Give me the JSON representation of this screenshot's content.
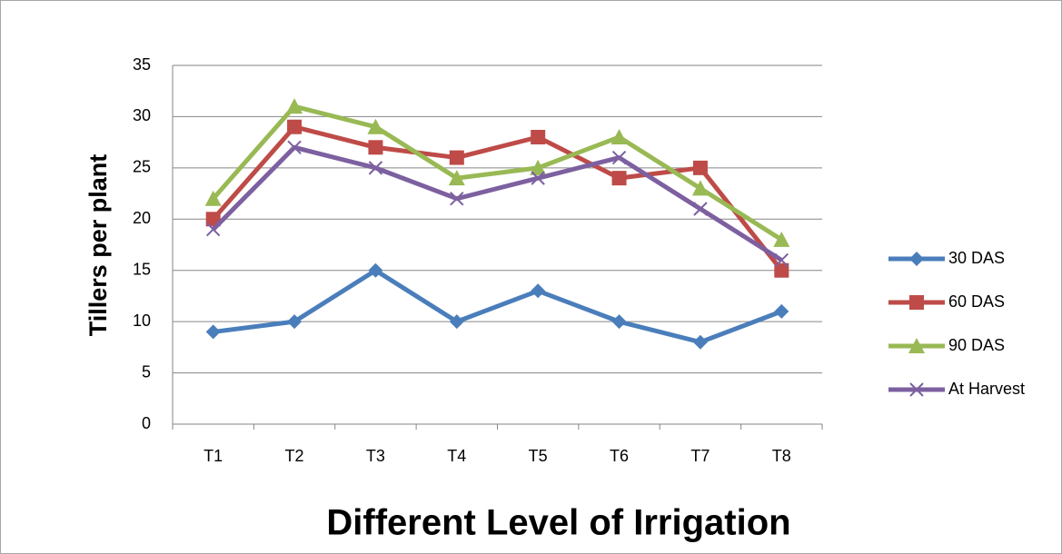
{
  "chart_data": {
    "type": "line",
    "y_label": "Tillers per plant",
    "x_label": "Different Level of Irrigation",
    "categories": [
      "T1",
      "T2",
      "T3",
      "T4",
      "T5",
      "T6",
      "T7",
      "T8"
    ],
    "series": [
      {
        "name": "30 DAS",
        "color": "#4a7ebb",
        "marker": "diamond",
        "values": [
          9,
          10,
          15,
          10,
          13,
          10,
          8,
          11
        ]
      },
      {
        "name": "60 DAS",
        "color": "#be4b48",
        "marker": "square",
        "values": [
          20,
          29,
          27,
          26,
          28,
          24,
          25,
          15
        ]
      },
      {
        "name": "90 DAS",
        "color": "#98b954",
        "marker": "triangle",
        "values": [
          22,
          31,
          29,
          24,
          25,
          28,
          23,
          18
        ]
      },
      {
        "name": "At Harvest",
        "color": "#7d60a0",
        "marker": "x",
        "values": [
          19,
          27,
          25,
          22,
          24,
          26,
          21,
          16
        ]
      }
    ],
    "ylim": [
      0,
      35
    ],
    "yticks": [
      0,
      5,
      10,
      15,
      20,
      25,
      30,
      35
    ],
    "grid": true,
    "legend": "right"
  }
}
